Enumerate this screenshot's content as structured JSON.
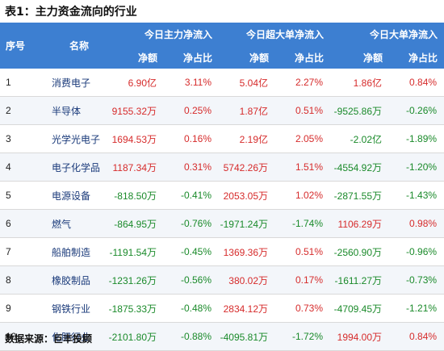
{
  "title": "表1：主力资金流向的行业",
  "header": {
    "index": "序号",
    "name": "名称",
    "groups": [
      "今日主力净流入",
      "今日超大单净流入",
      "今日大单净流入"
    ],
    "sub": [
      "净额",
      "净占比"
    ]
  },
  "rows": [
    {
      "idx": "1",
      "name": "消费电子",
      "v": [
        "6.90亿",
        "3.11%",
        "5.04亿",
        "2.27%",
        "1.86亿",
        "0.84%"
      ]
    },
    {
      "idx": "2",
      "name": "半导体",
      "v": [
        "9155.32万",
        "0.25%",
        "1.87亿",
        "0.51%",
        "-9525.86万",
        "-0.26%"
      ]
    },
    {
      "idx": "3",
      "name": "光学光电子",
      "v": [
        "1694.53万",
        "0.16%",
        "2.19亿",
        "2.05%",
        "-2.02亿",
        "-1.89%"
      ]
    },
    {
      "idx": "4",
      "name": "电子化学品",
      "v": [
        "1187.34万",
        "0.31%",
        "5742.26万",
        "1.51%",
        "-4554.92万",
        "-1.20%"
      ]
    },
    {
      "idx": "5",
      "name": "电源设备",
      "v": [
        "-818.50万",
        "-0.41%",
        "2053.05万",
        "1.02%",
        "-2871.55万",
        "-1.43%"
      ]
    },
    {
      "idx": "6",
      "name": "燃气",
      "v": [
        "-864.95万",
        "-0.76%",
        "-1971.24万",
        "-1.74%",
        "1106.29万",
        "0.98%"
      ]
    },
    {
      "idx": "7",
      "name": "船舶制造",
      "v": [
        "-1191.54万",
        "-0.45%",
        "1369.36万",
        "0.51%",
        "-2560.90万",
        "-0.96%"
      ]
    },
    {
      "idx": "8",
      "name": "橡胶制品",
      "v": [
        "-1231.26万",
        "-0.56%",
        "380.02万",
        "0.17%",
        "-1611.27万",
        "-0.73%"
      ]
    },
    {
      "idx": "9",
      "name": "钢铁行业",
      "v": [
        "-1875.33万",
        "-0.48%",
        "2834.12万",
        "0.73%",
        "-4709.45万",
        "-1.21%"
      ]
    },
    {
      "idx": "10",
      "name": "化肥行业",
      "v": [
        "-2101.80万",
        "-0.88%",
        "-4095.81万",
        "-1.72%",
        "1994.00万",
        "0.84%"
      ]
    }
  ],
  "source": "数据来源：巨丰投顾",
  "colors": {
    "positive": "#d62b2b",
    "negative": "#1a8a2a",
    "header": "#3d7fd1"
  }
}
